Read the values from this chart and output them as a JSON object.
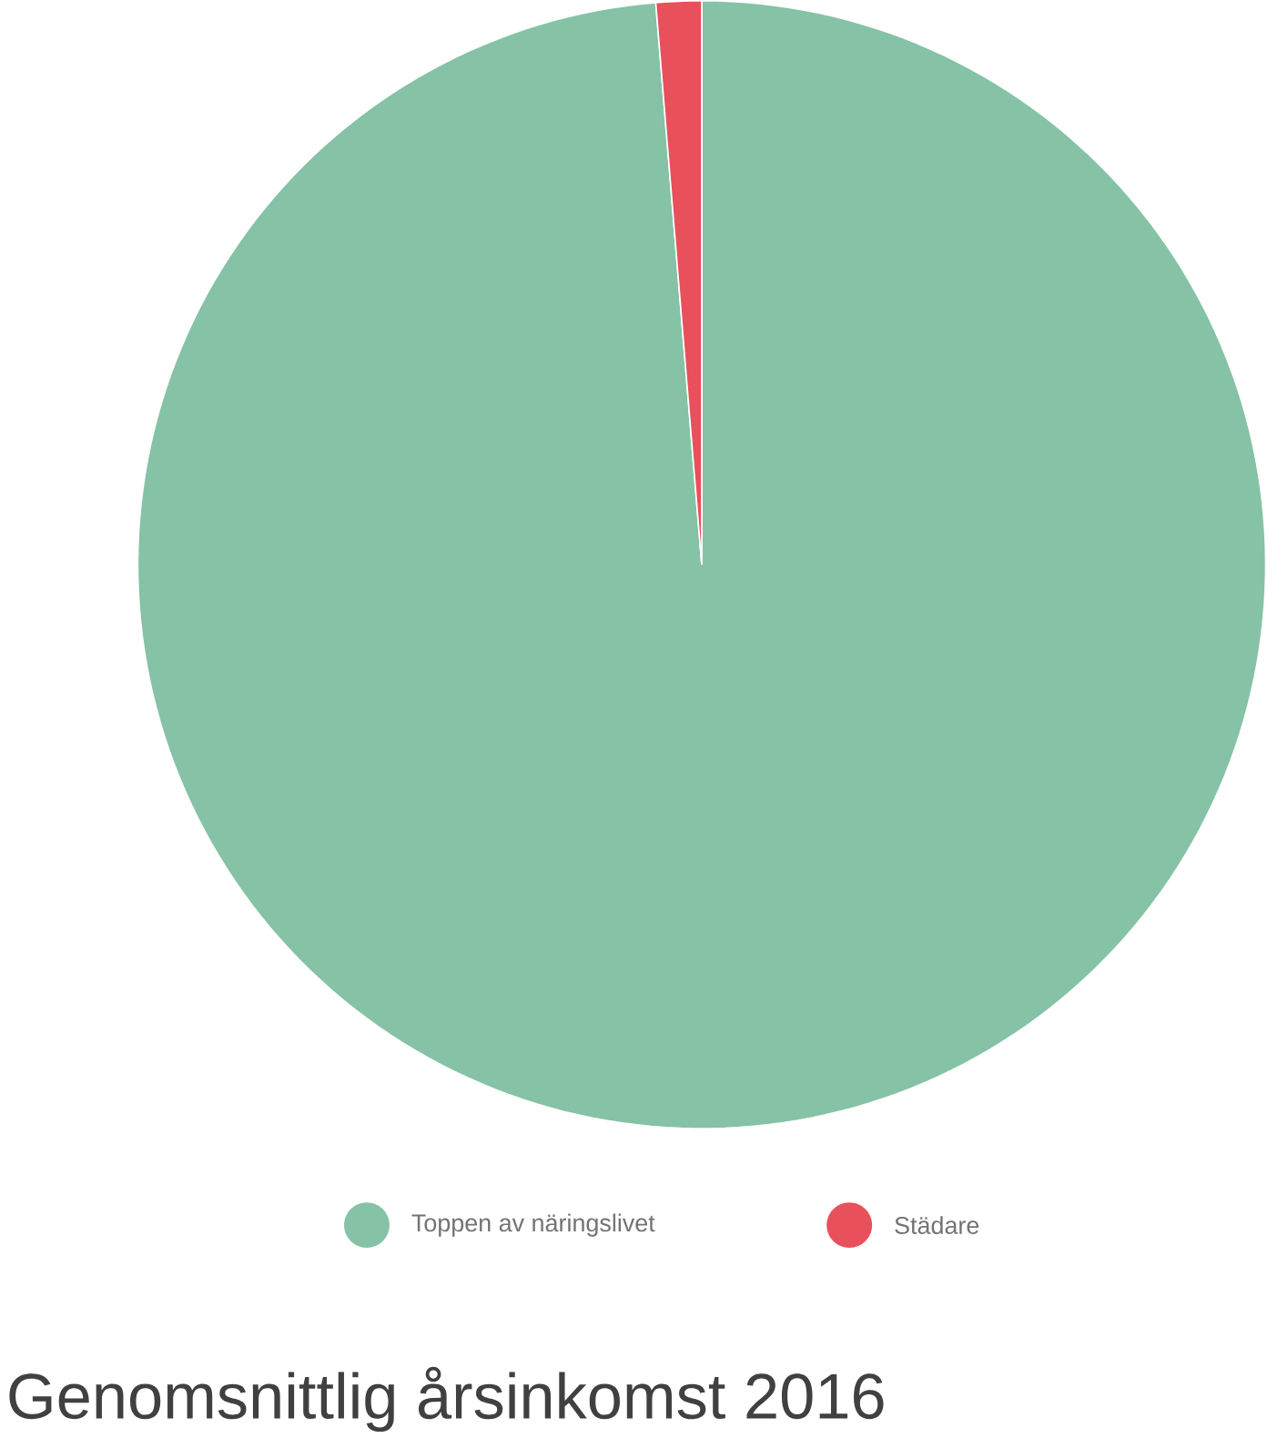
{
  "chart_data": {
    "type": "pie",
    "title": "Genomsnittlig årsinkomst 2016",
    "categories": [
      "Toppen av näringslivet",
      "Städare"
    ],
    "values": [
      98.7,
      1.3
    ],
    "colors": [
      "#85c2a6",
      "#e8505b"
    ],
    "legend": "bottom"
  }
}
